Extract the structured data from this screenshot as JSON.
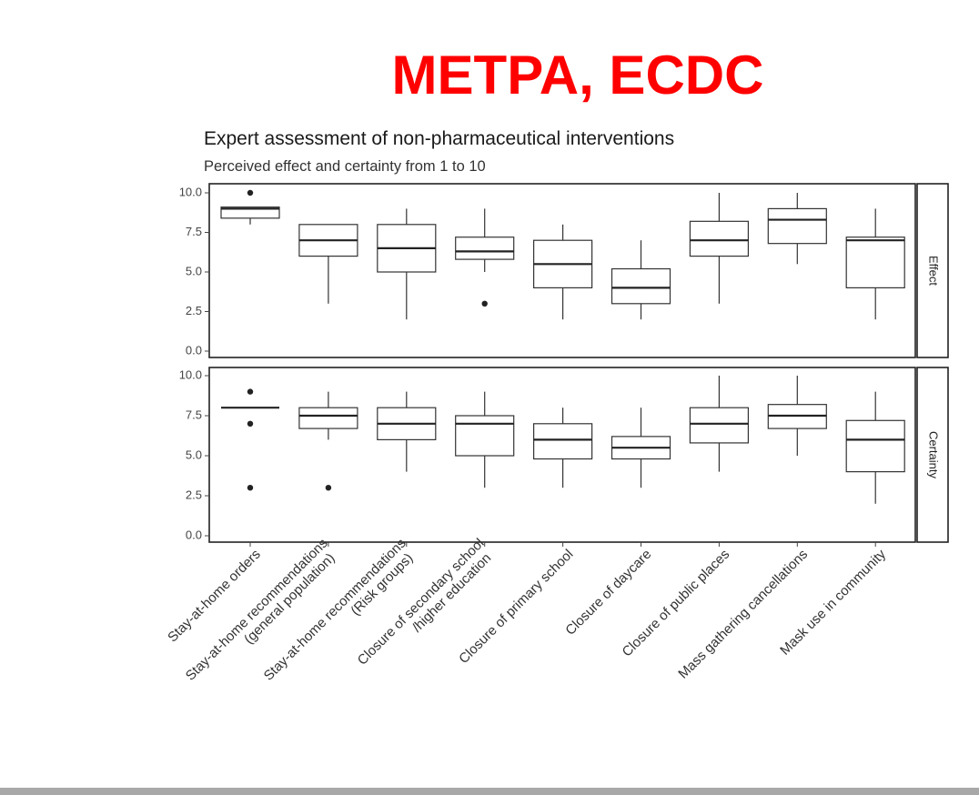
{
  "slide": {
    "title": "METPA, ECDC"
  },
  "chart_data": {
    "type": "boxplot",
    "title": "Expert assessment of non-pharmaceutical interventions",
    "subtitle": "Perceived effect and certainty from 1 to 10",
    "categories": [
      "Stay-at-home orders",
      "Stay-at-home recommendations\n(general population)",
      "Stay-at-home recommendations\n(Risk groups)",
      "Closure of secondary school\n/higher education",
      "Closure of primary school",
      "Closure of daycare",
      "Closure of public places",
      "Mass gathering cancellations",
      "Mask use in community"
    ],
    "ylim": [
      0,
      10
    ],
    "yticks": [
      "0.0",
      "2.5",
      "5.0",
      "7.5",
      "10.0"
    ],
    "grid": false,
    "panels": [
      {
        "name": "Effect",
        "boxes": [
          {
            "whisker_low": 8.0,
            "q1": 8.4,
            "median": 9.0,
            "q3": 9.1,
            "whisker_high": 9.1,
            "outliers": [
              10.0
            ]
          },
          {
            "whisker_low": 3.0,
            "q1": 6.0,
            "median": 7.0,
            "q3": 8.0,
            "whisker_high": 8.0,
            "outliers": []
          },
          {
            "whisker_low": 2.0,
            "q1": 5.0,
            "median": 6.5,
            "q3": 8.0,
            "whisker_high": 9.0,
            "outliers": []
          },
          {
            "whisker_low": 5.0,
            "q1": 5.8,
            "median": 6.3,
            "q3": 7.2,
            "whisker_high": 9.0,
            "outliers": [
              3.0
            ]
          },
          {
            "whisker_low": 2.0,
            "q1": 4.0,
            "median": 5.5,
            "q3": 7.0,
            "whisker_high": 8.0,
            "outliers": []
          },
          {
            "whisker_low": 2.0,
            "q1": 3.0,
            "median": 4.0,
            "q3": 5.2,
            "whisker_high": 7.0,
            "outliers": []
          },
          {
            "whisker_low": 3.0,
            "q1": 6.0,
            "median": 7.0,
            "q3": 8.2,
            "whisker_high": 10.0,
            "outliers": []
          },
          {
            "whisker_low": 5.5,
            "q1": 6.8,
            "median": 8.3,
            "q3": 9.0,
            "whisker_high": 10.0,
            "outliers": []
          },
          {
            "whisker_low": 2.0,
            "q1": 4.0,
            "median": 7.0,
            "q3": 7.2,
            "whisker_high": 9.0,
            "outliers": []
          }
        ]
      },
      {
        "name": "Certainty",
        "boxes": [
          {
            "whisker_low": 8.0,
            "q1": 8.0,
            "median": 8.0,
            "q3": 8.0,
            "whisker_high": 8.0,
            "outliers": [
              9.0,
              7.0,
              3.0
            ]
          },
          {
            "whisker_low": 6.0,
            "q1": 6.7,
            "median": 7.5,
            "q3": 8.0,
            "whisker_high": 9.0,
            "outliers": [
              3.0
            ]
          },
          {
            "whisker_low": 4.0,
            "q1": 6.0,
            "median": 7.0,
            "q3": 8.0,
            "whisker_high": 9.0,
            "outliers": []
          },
          {
            "whisker_low": 3.0,
            "q1": 5.0,
            "median": 7.0,
            "q3": 7.5,
            "whisker_high": 9.0,
            "outliers": []
          },
          {
            "whisker_low": 3.0,
            "q1": 4.8,
            "median": 6.0,
            "q3": 7.0,
            "whisker_high": 8.0,
            "outliers": []
          },
          {
            "whisker_low": 3.0,
            "q1": 4.8,
            "median": 5.5,
            "q3": 6.2,
            "whisker_high": 8.0,
            "outliers": []
          },
          {
            "whisker_low": 4.0,
            "q1": 5.8,
            "median": 7.0,
            "q3": 8.0,
            "whisker_high": 10.0,
            "outliers": []
          },
          {
            "whisker_low": 5.0,
            "q1": 6.7,
            "median": 7.5,
            "q3": 8.2,
            "whisker_high": 10.0,
            "outliers": []
          },
          {
            "whisker_low": 2.0,
            "q1": 4.0,
            "median": 6.0,
            "q3": 7.2,
            "whisker_high": 9.0,
            "outliers": []
          }
        ]
      }
    ],
    "colors": {
      "title": "#ff0000",
      "box_fill": "#ffffff",
      "line": "#333333",
      "strip_fill": "#ffffff"
    }
  }
}
